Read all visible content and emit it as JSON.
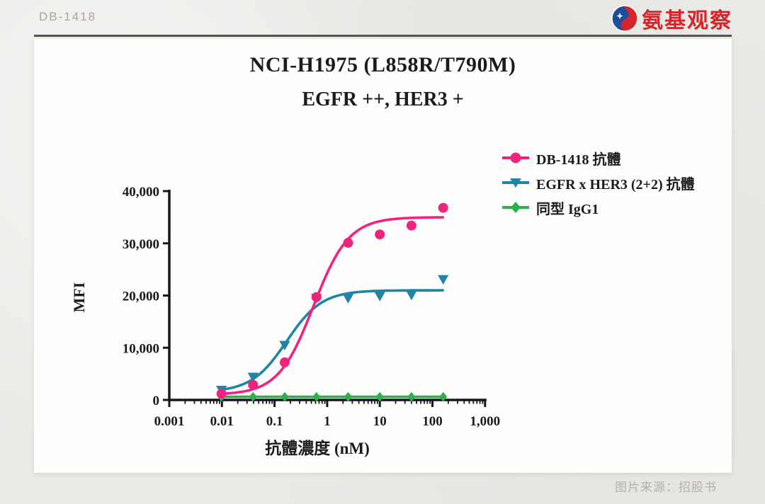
{
  "page": {
    "watermark": "DB-1418",
    "brand": "氨基观察",
    "source_note": "图片来源：招股书"
  },
  "chart_data": {
    "type": "scatter",
    "title": "NCI-H1975 (L858R/T790M)",
    "subtitle": "EGFR ++, HER3 +",
    "xlabel": "抗體濃度 (nM)",
    "ylabel": "MFI",
    "x_scale": "log10",
    "xlim": [
      0.001,
      1000
    ],
    "ylim": [
      0,
      40000
    ],
    "x_ticks": [
      "0.001",
      "0.01",
      "0.1",
      "1",
      "10",
      "100",
      "1,000"
    ],
    "y_ticks": [
      "0",
      "10,000",
      "20,000",
      "30,000",
      "40,000"
    ],
    "grid": false,
    "legend_position": "right-top",
    "x": [
      0.0098,
      0.039,
      0.156,
      0.625,
      2.5,
      10,
      40,
      160
    ],
    "series": [
      {
        "name": "同型 IgG1",
        "marker": "diamond",
        "color": "#2fae4e",
        "values": [
          600,
          600,
          600,
          600,
          600,
          600,
          600,
          600
        ],
        "fit": {
          "bottom": 600,
          "top": 600,
          "ec50": 1,
          "hill": 1
        }
      },
      {
        "name": "EGFR x HER3 (2+2) 抗體",
        "marker": "triangle-down",
        "color": "#1f84a5",
        "values": [
          1900,
          4400,
          10500,
          19500,
          19500,
          19900,
          20100,
          23100
        ],
        "fit": {
          "bottom": 1500,
          "top": 21000,
          "ec50": 0.17,
          "hill": 1.3
        }
      },
      {
        "name": "DB-1418 抗體",
        "marker": "circle",
        "color": "#f0247e",
        "values": [
          1200,
          2900,
          7200,
          19700,
          30100,
          31700,
          33400,
          36800
        ],
        "fit": {
          "bottom": 1000,
          "top": 35000,
          "ec50": 0.55,
          "hill": 1.3
        }
      }
    ],
    "legend_order": [
      2,
      1,
      0
    ]
  }
}
